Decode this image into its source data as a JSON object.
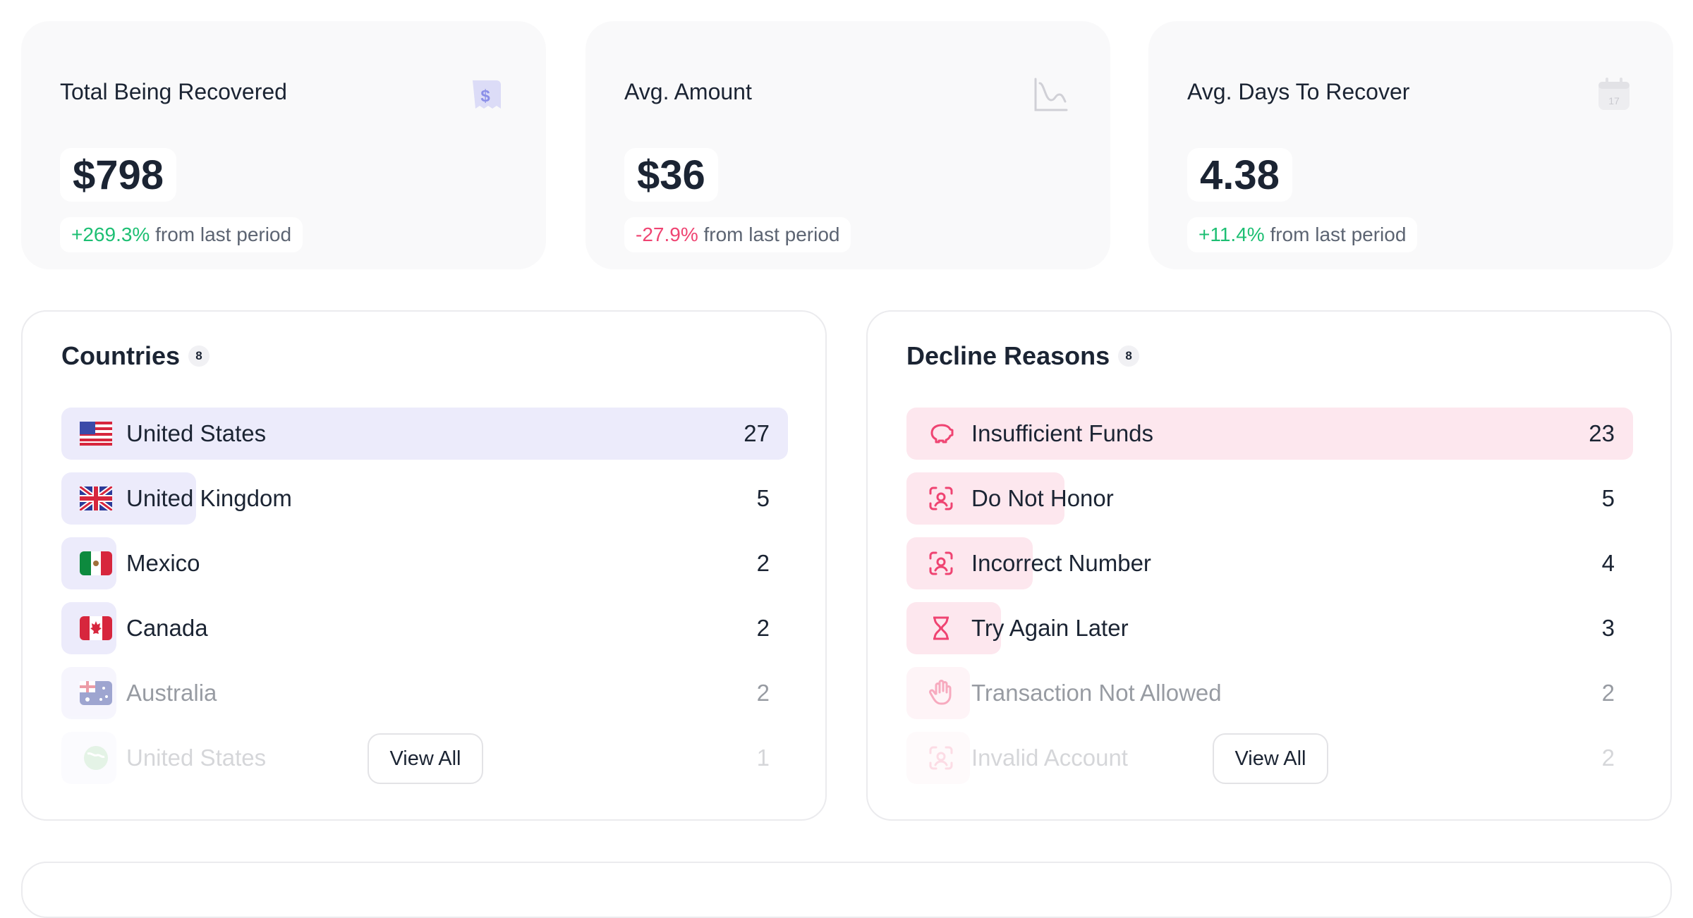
{
  "stats": [
    {
      "title": "Total Being Recovered",
      "value": "$798",
      "change": "+269.3%",
      "change_suffix": "from last period",
      "direction": "positive",
      "icon": "receipt-dollar-icon"
    },
    {
      "title": "Avg. Amount",
      "value": "$36",
      "change": "-27.9%",
      "change_suffix": "from last period",
      "direction": "negative",
      "icon": "line-chart-icon"
    },
    {
      "title": "Avg. Days To Recover",
      "value": "4.38",
      "change": "+11.4%",
      "change_suffix": "from last period",
      "direction": "positive",
      "icon": "calendar-icon"
    }
  ],
  "countries": {
    "title": "Countries",
    "count": "8",
    "view_all_label": "View All",
    "items": [
      {
        "label": "United States",
        "value": "27",
        "share": 1.0,
        "icon": "us-flag-icon"
      },
      {
        "label": "United Kingdom",
        "value": "5",
        "share": 0.185,
        "icon": "uk-flag-icon"
      },
      {
        "label": "Mexico",
        "value": "2",
        "share": 0.074,
        "icon": "mexico-flag-icon"
      },
      {
        "label": "Canada",
        "value": "2",
        "share": 0.074,
        "icon": "canada-flag-icon"
      },
      {
        "label": "Australia",
        "value": "2",
        "share": 0.074,
        "icon": "australia-flag-icon"
      },
      {
        "label": "United States",
        "value": "1",
        "share": 0.037,
        "icon": "globe-icon"
      }
    ]
  },
  "decline_reasons": {
    "title": "Decline Reasons",
    "count": "8",
    "view_all_label": "View All",
    "items": [
      {
        "label": "Insufficient Funds",
        "value": "23",
        "share": 1.0,
        "icon": "piggy-bank-icon"
      },
      {
        "label": "Do Not Honor",
        "value": "5",
        "share": 0.217,
        "icon": "face-scan-icon"
      },
      {
        "label": "Incorrect Number",
        "value": "4",
        "share": 0.174,
        "icon": "face-scan-icon"
      },
      {
        "label": "Try Again Later",
        "value": "3",
        "share": 0.13,
        "icon": "hourglass-icon"
      },
      {
        "label": "Transaction Not Allowed",
        "value": "2",
        "share": 0.087,
        "icon": "hand-stop-icon"
      },
      {
        "label": "Invalid Account",
        "value": "2",
        "share": 0.087,
        "icon": "face-scan-icon"
      }
    ]
  },
  "colors": {
    "positive": "#1dbf73",
    "negative": "#ef4472",
    "country_bar": "#ecebfb",
    "decline_bar": "#fde7ee",
    "decline_icon": "#ef4472"
  }
}
